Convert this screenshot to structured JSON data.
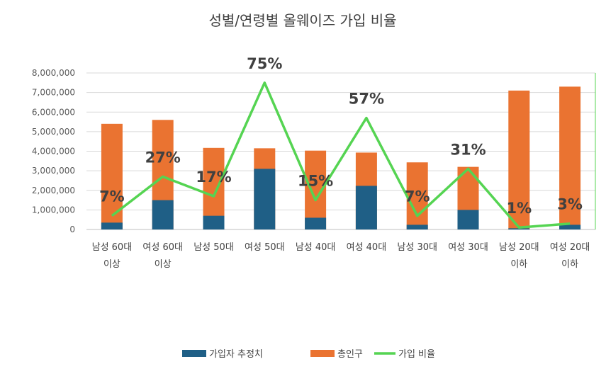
{
  "chart_data": {
    "type": "bar",
    "title": "성별/연령별 올웨이즈 가입 비율",
    "categories": [
      [
        "남성 60대",
        "이상"
      ],
      [
        "여성 60대",
        "이상"
      ],
      [
        "남성 50대"
      ],
      [
        "여성 50대"
      ],
      [
        "남성 40대"
      ],
      [
        "여성 40대"
      ],
      [
        "남성 30대"
      ],
      [
        "여성 30대"
      ],
      [
        "남성 20대",
        "이하"
      ],
      [
        "여성 20대",
        "이하"
      ]
    ],
    "series": [
      {
        "name": "가입자 추정치",
        "kind": "bar",
        "color": "#1f5f86",
        "values": [
          350000,
          1500000,
          700000,
          3100000,
          600000,
          2230000,
          240000,
          1000000,
          60000,
          240000
        ]
      },
      {
        "name": "총인구",
        "kind": "bar",
        "color": "#ea7331",
        "values": [
          5400000,
          5600000,
          4170000,
          4150000,
          4030000,
          3930000,
          3430000,
          3200000,
          7100000,
          7300000
        ]
      },
      {
        "name": "가입 비율",
        "kind": "line",
        "color": "#55d452",
        "values": [
          7,
          27,
          17,
          75,
          15,
          57,
          7,
          31,
          1,
          3
        ],
        "labels": [
          "7%",
          "27%",
          "17%",
          "75%",
          "15%",
          "57%",
          "7%",
          "31%",
          "1%",
          "3%"
        ]
      }
    ],
    "y_axis": {
      "ylim": [
        0,
        8000000
      ],
      "ticks": [
        0,
        1000000,
        2000000,
        3000000,
        4000000,
        5000000,
        6000000,
        7000000,
        8000000
      ],
      "tick_labels": [
        "0",
        "1,000,000",
        "2,000,000",
        "3,000,000",
        "4,000,000",
        "5,000,000",
        "6,000,000",
        "7,000,000",
        "8,000,000"
      ]
    },
    "secondary_y_axis": {
      "ylim": [
        0,
        80
      ],
      "tick_labels_shown": false
    },
    "grid": true,
    "legend": "bottom",
    "stacked": false
  }
}
